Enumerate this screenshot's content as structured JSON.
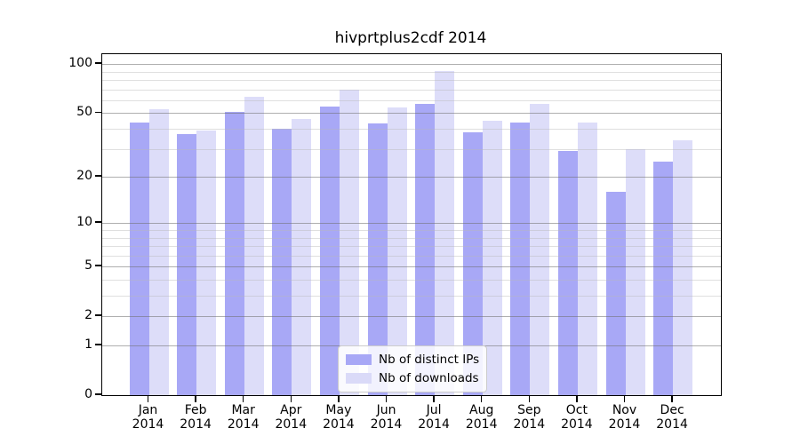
{
  "title": "hivprtplus2cdf 2014",
  "colors": {
    "distinct_ips": "#a8a8f6",
    "downloads": "#dadaf8",
    "downloads_rgba": "rgba(173,173,241,0.42)",
    "grid_major": "#b3b3b3",
    "grid_minor": "#e3e3e3",
    "frame": "#000000",
    "text": "#000000"
  },
  "legend": {
    "items": [
      {
        "label": "Nb of distinct IPs",
        "series": "distinct_ips"
      },
      {
        "label": "Nb of downloads",
        "series": "downloads"
      }
    ]
  },
  "chart_data": {
    "type": "bar",
    "title": "hivprtplus2cdf 2014",
    "categories": [
      "Jan 2014",
      "Feb 2014",
      "Mar 2014",
      "Apr 2014",
      "May 2014",
      "Jun 2014",
      "Jul 2014",
      "Aug 2014",
      "Sep 2014",
      "Oct 2014",
      "Nov 2014",
      "Dec 2014"
    ],
    "series": [
      {
        "name": "Nb of distinct IPs",
        "values": [
          44,
          37,
          51,
          40,
          55,
          43,
          57,
          38,
          44,
          29,
          16,
          25
        ]
      },
      {
        "name": "Nb of downloads",
        "values": [
          53,
          39,
          63,
          46,
          70,
          54,
          91,
          45,
          57,
          44,
          30,
          34
        ]
      }
    ],
    "xlabel": "",
    "ylabel": "",
    "yscale": "log1p",
    "y_tick_values": [
      0,
      1,
      2,
      5,
      10,
      20,
      50,
      100
    ],
    "y_tick_labels": [
      "0",
      "1",
      "2",
      "5",
      "10",
      "20",
      "50",
      "100"
    ],
    "y_minor_values": [
      3,
      4,
      6,
      7,
      8,
      9,
      30,
      40,
      60,
      70,
      80,
      90
    ],
    "ylim": [
      0,
      115
    ],
    "grid": "on",
    "grid_above_bars": true,
    "legend_position": "lower center"
  }
}
